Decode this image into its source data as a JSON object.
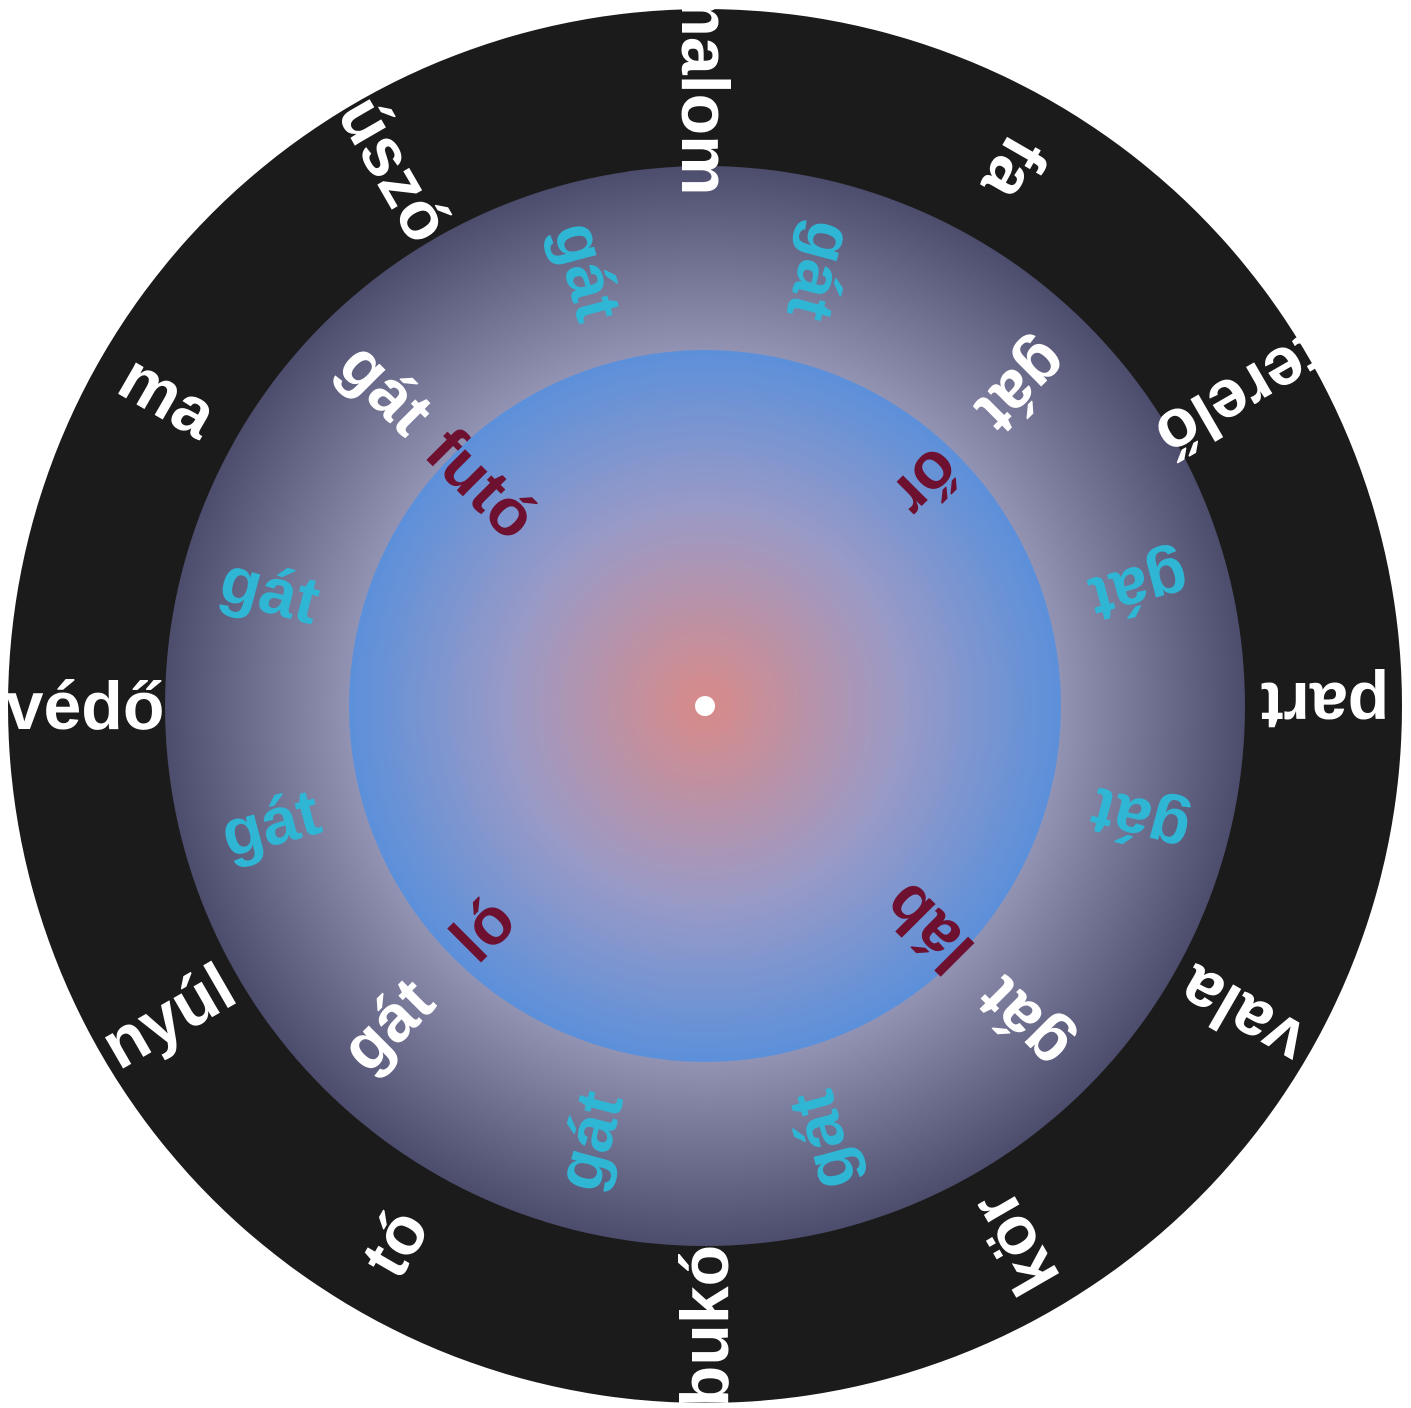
{
  "colors": {
    "outer_ring": "#1a1a1a",
    "middle_ring_edge": "#4a4a6a",
    "middle_ring_inner": "#9090b0",
    "inner_disc_edge": "#5f8fd6",
    "inner_disc_center": "#d88a8a",
    "center_dot": "#ffffff",
    "word_white": "#ffffff",
    "word_cyan": "#2fb6d4",
    "word_maroon": "#6e1030"
  },
  "outer_words": [
    {
      "text": "malom",
      "angle": 0
    },
    {
      "text": "fa",
      "angle": 30
    },
    {
      "text": "terelő",
      "angle": 60
    },
    {
      "text": "part",
      "angle": 90
    },
    {
      "text": "vala",
      "angle": 120
    },
    {
      "text": "kör",
      "angle": 150
    },
    {
      "text": "bukó",
      "angle": 180
    },
    {
      "text": "tó",
      "angle": 210
    },
    {
      "text": "nyúl",
      "angle": 240
    },
    {
      "text": "védő",
      "angle": 270
    },
    {
      "text": "ma",
      "angle": 300
    },
    {
      "text": "úszó",
      "angle": 330
    }
  ],
  "middle_words": [
    {
      "text": "gát",
      "angle": 15,
      "color": "cyan"
    },
    {
      "text": "gát",
      "angle": 45,
      "color": "white"
    },
    {
      "text": "gát",
      "angle": 75,
      "color": "cyan"
    },
    {
      "text": "gát",
      "angle": 105,
      "color": "cyan"
    },
    {
      "text": "gát",
      "angle": 135,
      "color": "white"
    },
    {
      "text": "gát",
      "angle": 165,
      "color": "cyan"
    },
    {
      "text": "gát",
      "angle": 195,
      "color": "cyan"
    },
    {
      "text": "gát",
      "angle": 225,
      "color": "white"
    },
    {
      "text": "gát",
      "angle": 255,
      "color": "cyan"
    },
    {
      "text": "gát",
      "angle": 285,
      "color": "cyan"
    },
    {
      "text": "gát",
      "angle": 315,
      "color": "white"
    },
    {
      "text": "gát",
      "angle": 345,
      "color": "cyan"
    }
  ],
  "inner_words": [
    {
      "text": "őr",
      "angle": 45
    },
    {
      "text": "láb",
      "angle": 135
    },
    {
      "text": "ló",
      "angle": 225
    },
    {
      "text": "futó",
      "angle": 315
    }
  ]
}
